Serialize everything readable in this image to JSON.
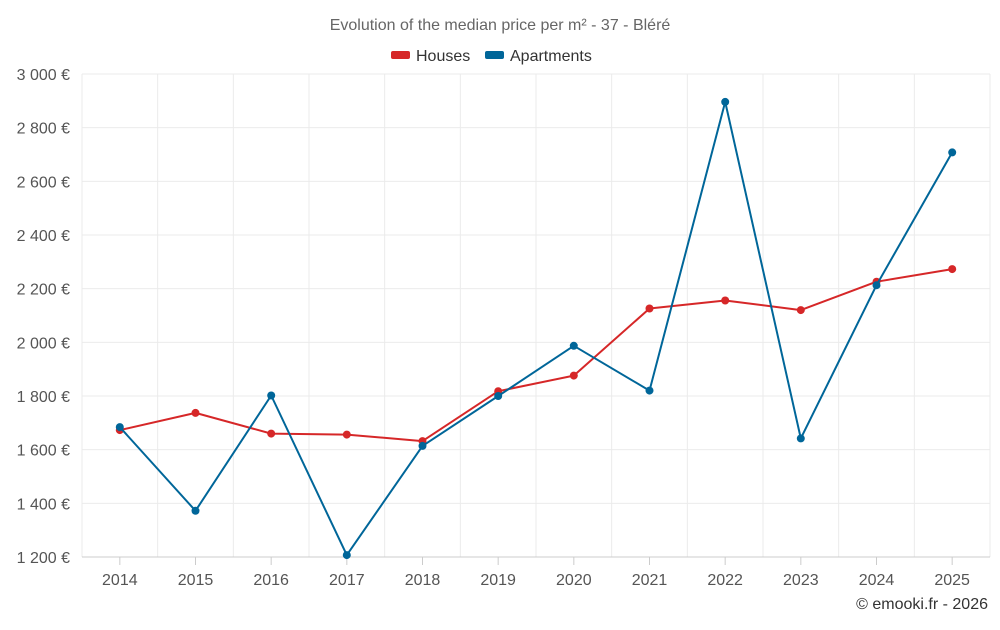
{
  "chart_data": {
    "type": "line",
    "title": "Evolution of the median price per m² - 37 - Bléré",
    "categories": [
      "2014",
      "2015",
      "2016",
      "2017",
      "2018",
      "2019",
      "2020",
      "2021",
      "2022",
      "2023",
      "2024",
      "2025"
    ],
    "series": [
      {
        "name": "Houses",
        "color": "#d62728",
        "values": [
          1673,
          1737,
          1660,
          1656,
          1632,
          1818,
          1876,
          2126,
          2156,
          2120,
          2226,
          2273
        ]
      },
      {
        "name": "Apartments",
        "color": "#006699",
        "values": [
          1684,
          1372,
          1802,
          1207,
          1614,
          1800,
          1987,
          1820,
          2896,
          1642,
          2213,
          2708
        ]
      }
    ],
    "y_ticks": [
      3000,
      2800,
      2600,
      2400,
      2200,
      2000,
      1800,
      1600,
      1400,
      1200
    ],
    "y_tick_labels": [
      "3 000 €",
      "2 800 €",
      "2 600 €",
      "2 400 €",
      "2 200 €",
      "2 000 €",
      "1 800 €",
      "1 600 €",
      "1 400 €",
      "1 200 €"
    ],
    "ylim": [
      1200,
      3000
    ],
    "xlabel": "",
    "ylabel": "",
    "legend_position": "top-center",
    "grid": true,
    "credit": "© emooki.fr - 2026"
  }
}
